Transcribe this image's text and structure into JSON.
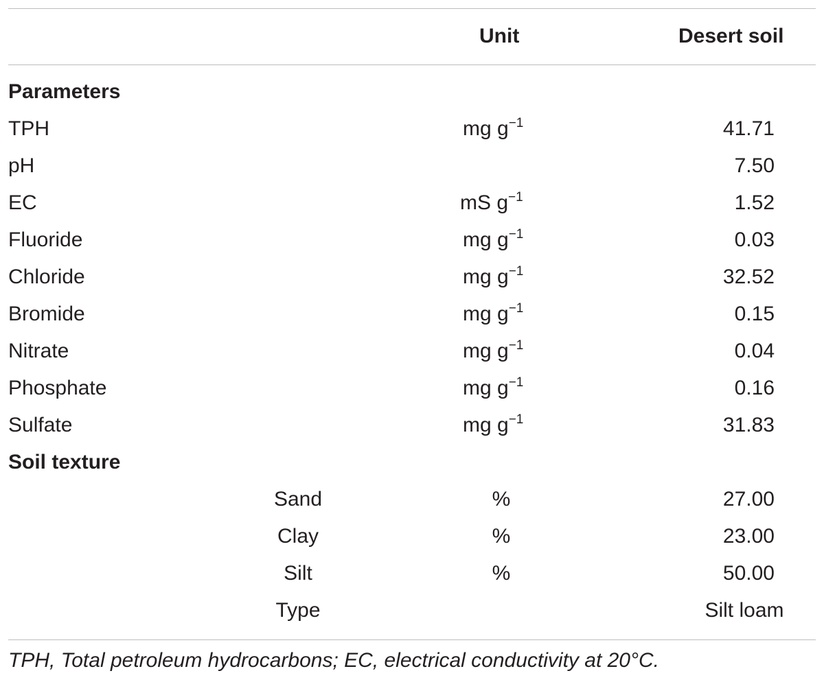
{
  "header": {
    "unit_label": "Unit",
    "value_label": "Desert soil"
  },
  "sections": [
    {
      "title": "Parameters",
      "rows": [
        {
          "name": "TPH",
          "unit_base": "mg g",
          "unit_exp": "−1",
          "value": "41.71"
        },
        {
          "name": "pH",
          "unit_base": "",
          "unit_exp": "",
          "value": "7.50"
        },
        {
          "name": "EC",
          "unit_base": "mS g",
          "unit_exp": "−1",
          "value": "1.52"
        },
        {
          "name": "Fluoride",
          "unit_base": "mg g",
          "unit_exp": "−1",
          "value": "0.03"
        },
        {
          "name": "Chloride",
          "unit_base": "mg g",
          "unit_exp": "−1",
          "value": "32.52"
        },
        {
          "name": "Bromide",
          "unit_base": "mg g",
          "unit_exp": "−1",
          "value": "0.15"
        },
        {
          "name": "Nitrate",
          "unit_base": "mg g",
          "unit_exp": "−1",
          "value": "0.04"
        },
        {
          "name": "Phosphate",
          "unit_base": "mg g",
          "unit_exp": "−1",
          "value": "0.16"
        },
        {
          "name": "Sulfate",
          "unit_base": "mg g",
          "unit_exp": "−1",
          "value": "31.83"
        }
      ]
    },
    {
      "title": "Soil texture",
      "rows": [
        {
          "name": "Sand",
          "unit_base": "%",
          "unit_exp": "",
          "value": "27.00"
        },
        {
          "name": "Clay",
          "unit_base": "%",
          "unit_exp": "",
          "value": "23.00"
        },
        {
          "name": "Silt",
          "unit_base": "%",
          "unit_exp": "",
          "value": "50.00"
        },
        {
          "name": "Type",
          "unit_base": "",
          "unit_exp": "",
          "value": "Silt loam"
        }
      ]
    }
  ],
  "footnote": "TPH, Total petroleum hydrocarbons; EC, electrical conductivity at 20°C."
}
